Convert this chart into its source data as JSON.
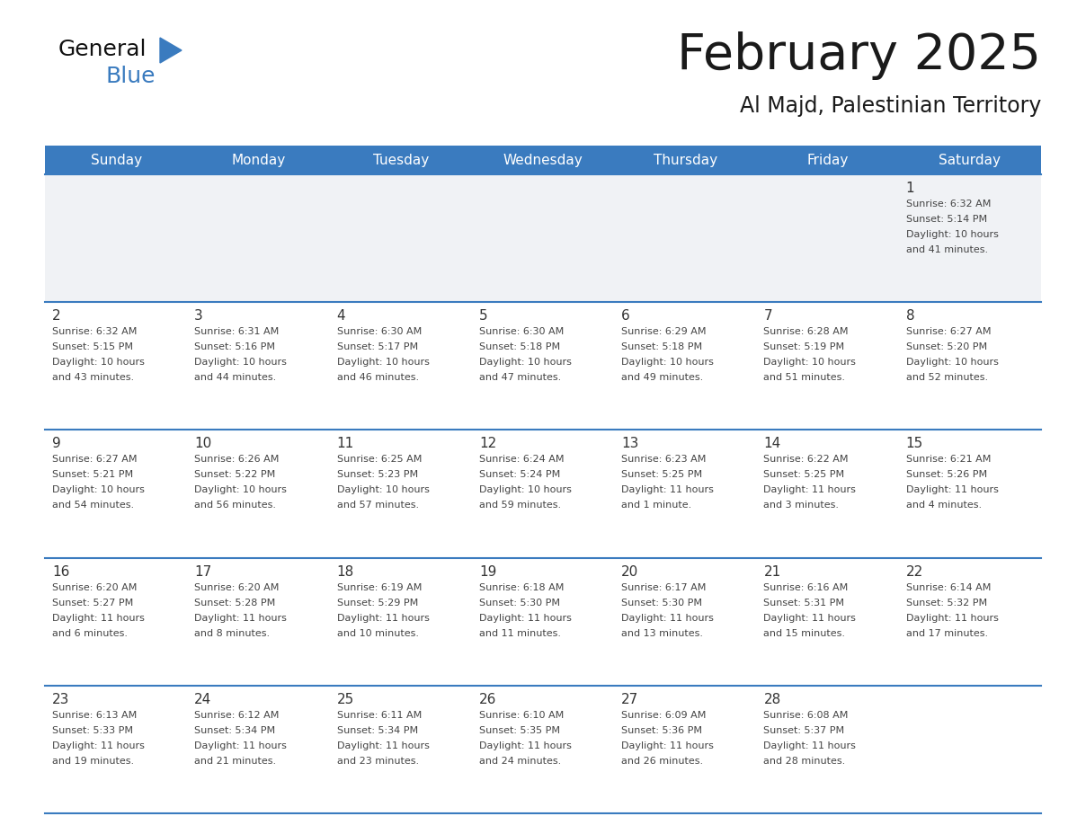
{
  "title": "February 2025",
  "subtitle": "Al Majd, Palestinian Territory",
  "header_color": "#3a7bbf",
  "header_text_color": "#ffffff",
  "day_names": [
    "Sunday",
    "Monday",
    "Tuesday",
    "Wednesday",
    "Thursday",
    "Friday",
    "Saturday"
  ],
  "background_color": "#ffffff",
  "cell_bg_white": "#ffffff",
  "cell_bg_gray": "#f0f2f5",
  "line_color": "#3a7bbf",
  "day_number_color": "#333333",
  "info_text_color": "#444444",
  "title_color": "#1a1a1a",
  "logo_general_color": "#111111",
  "logo_blue_color": "#3a7bbf",
  "logo_triangle_color": "#3a7bbf",
  "days": [
    {
      "day": 1,
      "col": 6,
      "row": 0,
      "sunrise": "6:32 AM",
      "sunset": "5:14 PM",
      "daylight": "10 hours and 41 minutes."
    },
    {
      "day": 2,
      "col": 0,
      "row": 1,
      "sunrise": "6:32 AM",
      "sunset": "5:15 PM",
      "daylight": "10 hours and 43 minutes."
    },
    {
      "day": 3,
      "col": 1,
      "row": 1,
      "sunrise": "6:31 AM",
      "sunset": "5:16 PM",
      "daylight": "10 hours and 44 minutes."
    },
    {
      "day": 4,
      "col": 2,
      "row": 1,
      "sunrise": "6:30 AM",
      "sunset": "5:17 PM",
      "daylight": "10 hours and 46 minutes."
    },
    {
      "day": 5,
      "col": 3,
      "row": 1,
      "sunrise": "6:30 AM",
      "sunset": "5:18 PM",
      "daylight": "10 hours and 47 minutes."
    },
    {
      "day": 6,
      "col": 4,
      "row": 1,
      "sunrise": "6:29 AM",
      "sunset": "5:18 PM",
      "daylight": "10 hours and 49 minutes."
    },
    {
      "day": 7,
      "col": 5,
      "row": 1,
      "sunrise": "6:28 AM",
      "sunset": "5:19 PM",
      "daylight": "10 hours and 51 minutes."
    },
    {
      "day": 8,
      "col": 6,
      "row": 1,
      "sunrise": "6:27 AM",
      "sunset": "5:20 PM",
      "daylight": "10 hours and 52 minutes."
    },
    {
      "day": 9,
      "col": 0,
      "row": 2,
      "sunrise": "6:27 AM",
      "sunset": "5:21 PM",
      "daylight": "10 hours and 54 minutes."
    },
    {
      "day": 10,
      "col": 1,
      "row": 2,
      "sunrise": "6:26 AM",
      "sunset": "5:22 PM",
      "daylight": "10 hours and 56 minutes."
    },
    {
      "day": 11,
      "col": 2,
      "row": 2,
      "sunrise": "6:25 AM",
      "sunset": "5:23 PM",
      "daylight": "10 hours and 57 minutes."
    },
    {
      "day": 12,
      "col": 3,
      "row": 2,
      "sunrise": "6:24 AM",
      "sunset": "5:24 PM",
      "daylight": "10 hours and 59 minutes."
    },
    {
      "day": 13,
      "col": 4,
      "row": 2,
      "sunrise": "6:23 AM",
      "sunset": "5:25 PM",
      "daylight": "11 hours and 1 minute."
    },
    {
      "day": 14,
      "col": 5,
      "row": 2,
      "sunrise": "6:22 AM",
      "sunset": "5:25 PM",
      "daylight": "11 hours and 3 minutes."
    },
    {
      "day": 15,
      "col": 6,
      "row": 2,
      "sunrise": "6:21 AM",
      "sunset": "5:26 PM",
      "daylight": "11 hours and 4 minutes."
    },
    {
      "day": 16,
      "col": 0,
      "row": 3,
      "sunrise": "6:20 AM",
      "sunset": "5:27 PM",
      "daylight": "11 hours and 6 minutes."
    },
    {
      "day": 17,
      "col": 1,
      "row": 3,
      "sunrise": "6:20 AM",
      "sunset": "5:28 PM",
      "daylight": "11 hours and 8 minutes."
    },
    {
      "day": 18,
      "col": 2,
      "row": 3,
      "sunrise": "6:19 AM",
      "sunset": "5:29 PM",
      "daylight": "11 hours and 10 minutes."
    },
    {
      "day": 19,
      "col": 3,
      "row": 3,
      "sunrise": "6:18 AM",
      "sunset": "5:30 PM",
      "daylight": "11 hours and 11 minutes."
    },
    {
      "day": 20,
      "col": 4,
      "row": 3,
      "sunrise": "6:17 AM",
      "sunset": "5:30 PM",
      "daylight": "11 hours and 13 minutes."
    },
    {
      "day": 21,
      "col": 5,
      "row": 3,
      "sunrise": "6:16 AM",
      "sunset": "5:31 PM",
      "daylight": "11 hours and 15 minutes."
    },
    {
      "day": 22,
      "col": 6,
      "row": 3,
      "sunrise": "6:14 AM",
      "sunset": "5:32 PM",
      "daylight": "11 hours and 17 minutes."
    },
    {
      "day": 23,
      "col": 0,
      "row": 4,
      "sunrise": "6:13 AM",
      "sunset": "5:33 PM",
      "daylight": "11 hours and 19 minutes."
    },
    {
      "day": 24,
      "col": 1,
      "row": 4,
      "sunrise": "6:12 AM",
      "sunset": "5:34 PM",
      "daylight": "11 hours and 21 minutes."
    },
    {
      "day": 25,
      "col": 2,
      "row": 4,
      "sunrise": "6:11 AM",
      "sunset": "5:34 PM",
      "daylight": "11 hours and 23 minutes."
    },
    {
      "day": 26,
      "col": 3,
      "row": 4,
      "sunrise": "6:10 AM",
      "sunset": "5:35 PM",
      "daylight": "11 hours and 24 minutes."
    },
    {
      "day": 27,
      "col": 4,
      "row": 4,
      "sunrise": "6:09 AM",
      "sunset": "5:36 PM",
      "daylight": "11 hours and 26 minutes."
    },
    {
      "day": 28,
      "col": 5,
      "row": 4,
      "sunrise": "6:08 AM",
      "sunset": "5:37 PM",
      "daylight": "11 hours and 28 minutes."
    }
  ]
}
